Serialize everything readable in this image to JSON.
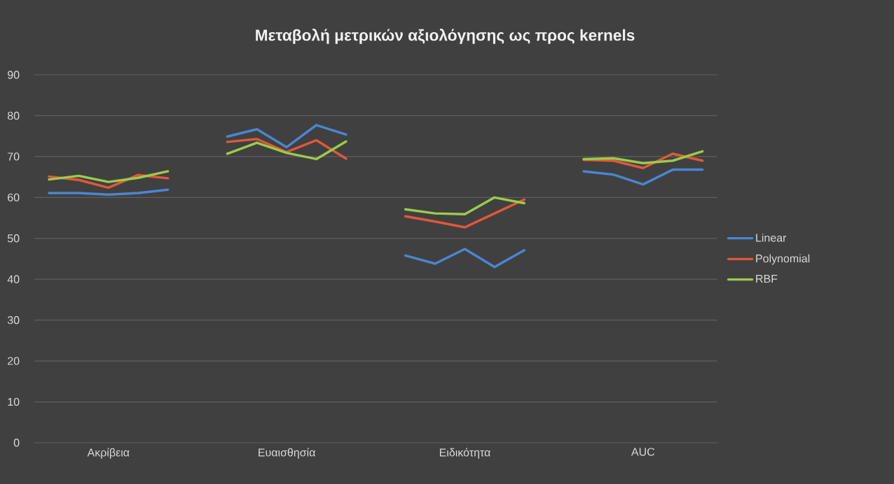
{
  "chart_data": {
    "type": "line",
    "title": "Μεταβολή μετρικών αξιολόγησης ως προς kernels",
    "categories": [
      null,
      null,
      "Ακρίβεια",
      null,
      null,
      null,
      null,
      null,
      "Ευαισθησία",
      null,
      null,
      null,
      null,
      null,
      "Ειδικότητα",
      null,
      null,
      null,
      null,
      null,
      "AUC",
      null,
      null
    ],
    "series": [
      {
        "name": "Linear",
        "color": "#4a86d0",
        "values": [
          61.1,
          61.1,
          60.7,
          61.1,
          61.9,
          null,
          74.9,
          76.7,
          72.3,
          77.7,
          75.4,
          null,
          45.8,
          43.8,
          47.4,
          43.0,
          47.1,
          null,
          66.4,
          65.6,
          63.2,
          66.8,
          66.8
        ]
      },
      {
        "name": "Polynomial",
        "color": "#e0583a",
        "values": [
          65.1,
          64.3,
          62.4,
          65.5,
          64.7,
          null,
          73.6,
          74.3,
          71.1,
          74.0,
          69.5,
          null,
          55.4,
          54.1,
          52.7,
          56.1,
          59.5,
          null,
          69.2,
          69.0,
          67.2,
          70.7,
          69.0
        ]
      },
      {
        "name": "RBF",
        "color": "#9bcb4a",
        "values": [
          64.4,
          65.3,
          63.8,
          64.8,
          66.4,
          null,
          70.7,
          73.4,
          70.9,
          69.4,
          73.7,
          null,
          57.1,
          56.1,
          55.9,
          60.0,
          58.6,
          null,
          69.4,
          69.6,
          68.4,
          69.0,
          71.3
        ]
      }
    ],
    "ylim": [
      0,
      90
    ],
    "yticks": [
      0,
      10,
      20,
      30,
      40,
      50,
      60,
      70,
      80,
      90
    ],
    "grid": "y",
    "legend": "right",
    "line_style": "solid"
  }
}
